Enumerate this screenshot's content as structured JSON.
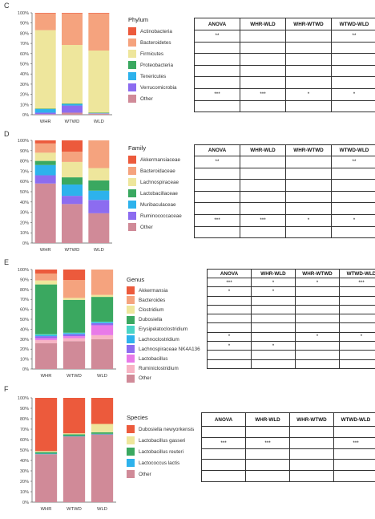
{
  "figure": {
    "panels": [
      {
        "letter": "C",
        "legend_title": "Phylum",
        "chart_data": {
          "type": "bar",
          "stacked": true,
          "categories": [
            "WHR",
            "WTWD",
            "WLD"
          ],
          "yticks": [
            "0%",
            "10%",
            "20%",
            "30%",
            "40%",
            "50%",
            "60%",
            "70%",
            "80%",
            "90%",
            "100%"
          ],
          "ylim": [
            0,
            100
          ],
          "series": [
            {
              "name": "Other",
              "color": "#d08a98",
              "values": [
                0.5,
                2,
                1
              ]
            },
            {
              "name": "Verrucomicrobia",
              "color": "#8c6cf0",
              "values": [
                1.5,
                7,
                0.3
              ]
            },
            {
              "name": "Tenericutes",
              "color": "#2db2ec",
              "values": [
                3.5,
                1.5,
                0.2
              ]
            },
            {
              "name": "Proteobacteria",
              "color": "#3aa860",
              "values": [
                0.5,
                0.5,
                0.5
              ]
            },
            {
              "name": "Firmicutes",
              "color": "#eee69c",
              "values": [
                77,
                57.5,
                61
              ]
            },
            {
              "name": "Bacteroidetes",
              "color": "#f5a37e",
              "values": [
                16.5,
                31,
                36.5
              ]
            },
            {
              "name": "Actinobacteria",
              "color": "#ec5a3c",
              "values": [
                0.5,
                0.5,
                0.5
              ]
            }
          ]
        },
        "table": {
          "headers": [
            "ANOVA",
            "WHR-WLD",
            "WHR-WTWD",
            "WTWD-WLD"
          ],
          "rows": [
            [
              "**",
              "",
              "",
              "**"
            ],
            [
              "",
              "",
              "",
              ""
            ],
            [
              "",
              "",
              "",
              ""
            ],
            [
              "",
              "",
              "",
              ""
            ],
            [
              "",
              "",
              "",
              ""
            ],
            [
              "***",
              "***",
              "*",
              "*"
            ],
            [
              "",
              "",
              "",
              ""
            ]
          ]
        }
      },
      {
        "letter": "D",
        "legend_title": "Family",
        "chart_data": {
          "type": "bar",
          "stacked": true,
          "categories": [
            "WHR",
            "WTWD",
            "WLD"
          ],
          "yticks": [
            "0%",
            "10%",
            "20%",
            "30%",
            "40%",
            "50%",
            "60%",
            "70%",
            "80%",
            "90%",
            "100%"
          ],
          "ylim": [
            0,
            100
          ],
          "series": [
            {
              "name": "Other",
              "color": "#d08a98",
              "values": [
                58,
                38,
                29
              ]
            },
            {
              "name": "Ruminococcaceae",
              "color": "#8c6cf0",
              "values": [
                8,
                8,
                13
              ]
            },
            {
              "name": "Muribaculaceae",
              "color": "#2db2ec",
              "values": [
                10,
                11,
                9
              ]
            },
            {
              "name": "Lactobacillaceae",
              "color": "#3aa860",
              "values": [
                4,
                7,
                10
              ]
            },
            {
              "name": "Lachnospiraceae",
              "color": "#eee69c",
              "values": [
                8,
                15,
                12
              ]
            },
            {
              "name": "Bacteroidaceae",
              "color": "#f5a37e",
              "values": [
                9,
                10,
                27
              ]
            },
            {
              "name": "Akkermansiaceae",
              "color": "#ec5a3c",
              "values": [
                3,
                11,
                0
              ]
            }
          ]
        },
        "table": {
          "headers": [
            "ANOVA",
            "WHR-WLD",
            "WHR-WTWD",
            "WTWD-WLD"
          ],
          "rows": [
            [
              "**",
              "",
              "",
              "**"
            ],
            [
              "",
              "",
              "",
              ""
            ],
            [
              "",
              "",
              "",
              ""
            ],
            [
              "",
              "",
              "",
              ""
            ],
            [
              "",
              "",
              "",
              ""
            ],
            [
              "***",
              "***",
              "*",
              "*"
            ],
            [
              "",
              "",
              "",
              ""
            ]
          ]
        }
      },
      {
        "letter": "E",
        "legend_title": "Genus",
        "chart_data": {
          "type": "bar",
          "stacked": true,
          "categories": [
            "WHR",
            "WTWD",
            "WLD"
          ],
          "yticks": [
            "0%",
            "10%",
            "20%",
            "30%",
            "40%",
            "50%",
            "60%",
            "70%",
            "80%",
            "90%",
            "100%"
          ],
          "ylim": [
            0,
            100
          ],
          "series": [
            {
              "name": "Other",
              "color": "#d08a98",
              "values": [
                26,
                28,
                30
              ]
            },
            {
              "name": "Ruminiclostridium",
              "color": "#f7b4c4",
              "values": [
                3,
                3,
                4
              ]
            },
            {
              "name": "Lactobacillus",
              "color": "#e87ae8",
              "values": [
                2,
                2,
                10
              ]
            },
            {
              "name": "Lachnospiraceae NK4A136",
              "color": "#8c6cf0",
              "values": [
                2,
                2,
                2
              ]
            },
            {
              "name": "Lachnoclostridium",
              "color": "#2db2ec",
              "values": [
                1,
                1,
                1
              ]
            },
            {
              "name": "Erysipelatoclostridium",
              "color": "#4ad4c6",
              "values": [
                1,
                0.5,
                0.5
              ]
            },
            {
              "name": "Dubosiella",
              "color": "#3aa860",
              "values": [
                50,
                33,
                25
              ]
            },
            {
              "name": "Clostridium",
              "color": "#eee69c",
              "values": [
                4,
                2,
                2
              ]
            },
            {
              "name": "Bacteroides",
              "color": "#f5a37e",
              "values": [
                7,
                18,
                25.5
              ]
            },
            {
              "name": "Akkermansia",
              "color": "#ec5a3c",
              "values": [
                4,
                10.5,
                0
              ]
            }
          ]
        },
        "table": {
          "headers": [
            "ANOVA",
            "WHR-WLD",
            "WHR-WTWD",
            "WTWD-WLD"
          ],
          "rows": [
            [
              "***",
              "*",
              "*",
              "***"
            ],
            [
              "*",
              "*",
              "",
              ""
            ],
            [
              "",
              "",
              "",
              ""
            ],
            [
              "",
              "",
              "",
              ""
            ],
            [
              "",
              "",
              "",
              ""
            ],
            [
              "",
              "",
              "",
              ""
            ],
            [
              "*",
              "",
              "*",
              "*"
            ],
            [
              "*",
              "*",
              "",
              ""
            ],
            [
              "",
              "",
              "",
              ""
            ],
            [
              "",
              "",
              "",
              ""
            ]
          ]
        }
      },
      {
        "letter": "F",
        "legend_title": "Species",
        "chart_data": {
          "type": "bar",
          "stacked": true,
          "categories": [
            "WHR",
            "WTWD",
            "WLD"
          ],
          "yticks": [
            "0%",
            "10%",
            "20%",
            "30%",
            "40%",
            "50%",
            "60%",
            "70%",
            "80%",
            "90%",
            "100%"
          ],
          "ylim": [
            0,
            100
          ],
          "series": [
            {
              "name": "Other",
              "color": "#d08a98",
              "values": [
                46,
                63,
                65
              ]
            },
            {
              "name": "Lactococcus lactis",
              "color": "#2db2ec",
              "values": [
                0.5,
                0.5,
                0.5
              ]
            },
            {
              "name": "Lactobacillus reuteri",
              "color": "#3aa860",
              "values": [
                1.5,
                1.5,
                1.5
              ]
            },
            {
              "name": "Lactobacillus gasseri",
              "color": "#eee69c",
              "values": [
                1,
                1,
                8
              ]
            },
            {
              "name": "Dubosiella newyorkensis",
              "color": "#f5a37e",
              "values": [
                0,
                0,
                0
              ]
            },
            {
              "name": "Dubosiella newyorkensis",
              "color": "#ec5a3c",
              "values": [
                51,
                34,
                25
              ]
            }
          ]
        },
        "table": {
          "headers": [
            "ANOVA",
            "WHR-WLD",
            "WHR-WTWD",
            "WTWD-WLD"
          ],
          "rows": [
            [
              "",
              "",
              "",
              ""
            ],
            [
              "***",
              "***",
              "",
              "***"
            ],
            [
              "",
              "",
              "",
              ""
            ],
            [
              "",
              "",
              "",
              ""
            ],
            [
              "",
              "",
              "",
              ""
            ]
          ]
        }
      }
    ]
  }
}
